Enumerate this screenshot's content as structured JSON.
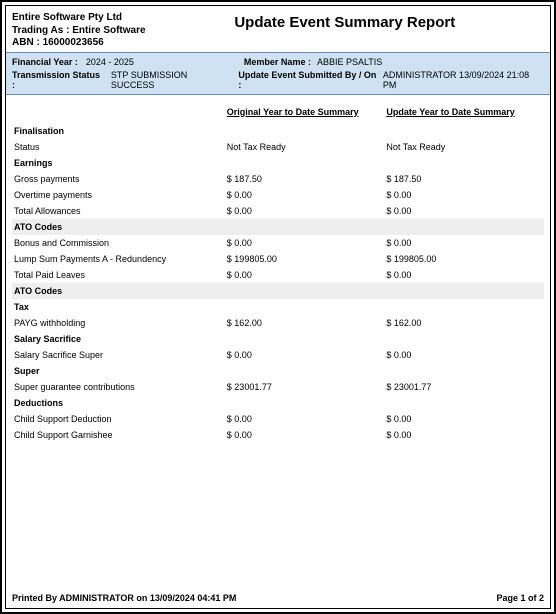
{
  "company": {
    "name": "Entire Software Pty Ltd",
    "trading_as_label": "Trading As :",
    "trading_as": "Entire Software",
    "abn_label": "ABN :",
    "abn": "16000023656"
  },
  "report_title": "Update Event Summary Report",
  "info": {
    "financial_year_label": "Financial Year :",
    "financial_year": "2024 - 2025",
    "member_name_label": "Member Name :",
    "member_name": "ABBIE PSALTIS",
    "transmission_status_label": "Transmission Status :",
    "transmission_status": "STP SUBMISSION SUCCESS",
    "submitted_by_label": "Update Event Submitted By / On :",
    "submitted_by": "ADMINISTRATOR 13/09/2024 21:08 PM"
  },
  "columns": {
    "original": "Original Year to Date Summary",
    "update": "Update Year to Date Summary"
  },
  "sections": {
    "finalisation": "Finalisation",
    "earnings": "Earnings",
    "ato_codes": "ATO Codes",
    "tax": "Tax",
    "salary_sacrifice": "Salary Sacrifice",
    "super": "Super",
    "deductions": "Deductions"
  },
  "rows": {
    "status": {
      "label": "Status",
      "orig": "Not Tax Ready",
      "upd": "Not Tax Ready"
    },
    "gross_payments": {
      "label": "Gross payments",
      "orig": "$ 187.50",
      "upd": "$ 187.50"
    },
    "overtime_payments": {
      "label": "Overtime payments",
      "orig": "$ 0.00",
      "upd": "$ 0.00"
    },
    "total_allowances": {
      "label": "Total Allowances",
      "orig": "$ 0.00",
      "upd": "$ 0.00"
    },
    "bonus_commission": {
      "label": "Bonus and Commission",
      "orig": "$ 0.00",
      "upd": "$ 0.00"
    },
    "lump_sum_a": {
      "label": "Lump Sum Payments A - Redundency",
      "orig": "$ 199805.00",
      "upd": "$ 199805.00"
    },
    "total_paid_leaves": {
      "label": "Total Paid Leaves",
      "orig": "$ 0.00",
      "upd": "$ 0.00"
    },
    "payg": {
      "label": "PAYG withholding",
      "orig": "$ 162.00",
      "upd": "$ 162.00"
    },
    "ss_super": {
      "label": "Salary Sacrifice Super",
      "orig": "$ 0.00",
      "upd": "$ 0.00"
    },
    "sgc": {
      "label": "Super guarantee contributions",
      "orig": "$ 23001.77",
      "upd": "$ 23001.77"
    },
    "csd": {
      "label": "Child Support Deduction",
      "orig": "$ 0.00",
      "upd": "$ 0.00"
    },
    "csg": {
      "label": "Child Support Garnishee",
      "orig": "$ 0.00",
      "upd": "$ 0.00"
    }
  },
  "footer": {
    "printed_by": "Printed By ADMINISTRATOR on 13/09/2024 04:41 PM",
    "page": "Page 1 of 2"
  }
}
